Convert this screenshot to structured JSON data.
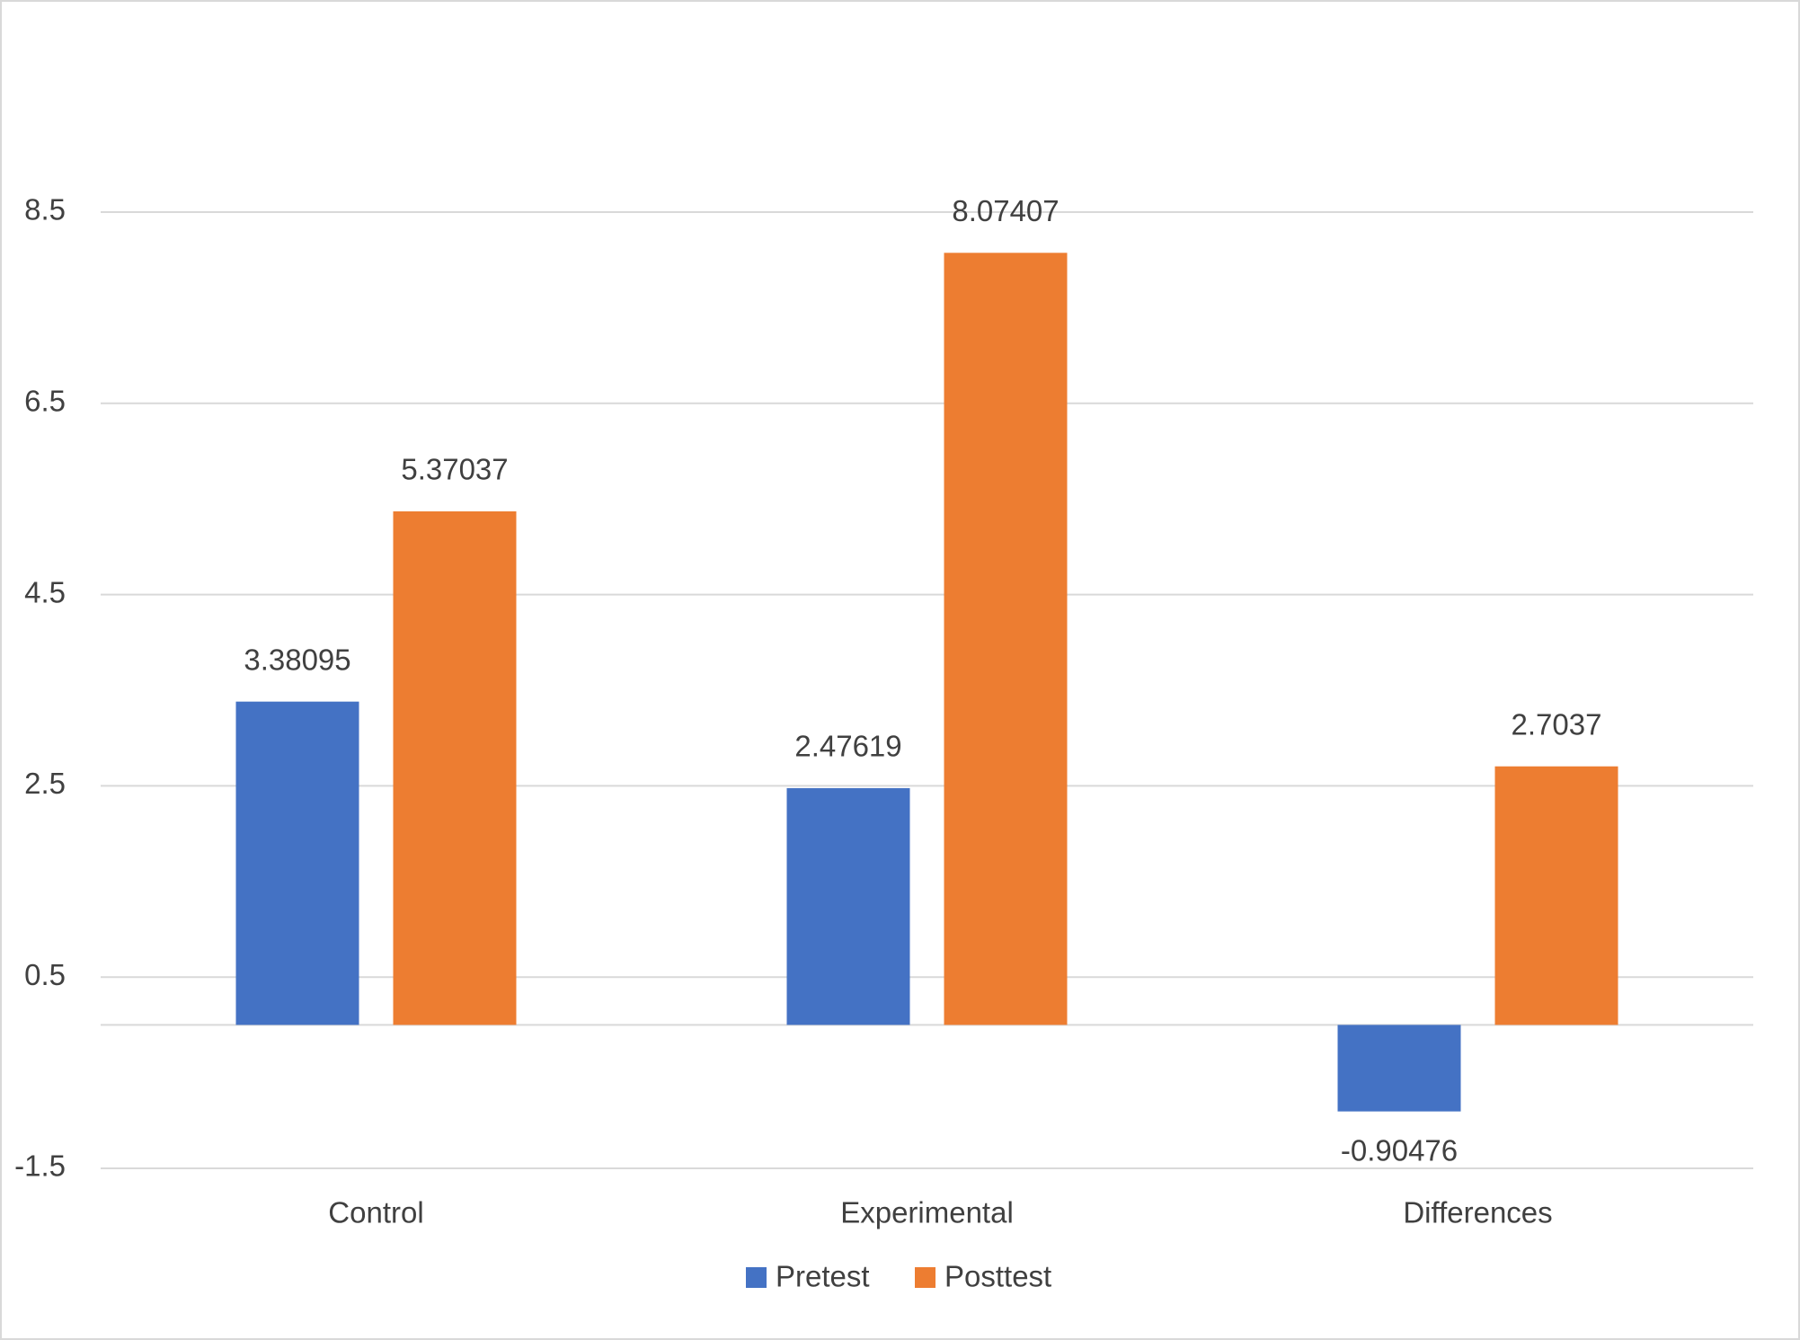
{
  "chart_data": {
    "type": "bar",
    "categories": [
      "Control",
      "Experimental",
      "Differences"
    ],
    "series": [
      {
        "name": "Pretest",
        "color": "#4472c4",
        "values": [
          3.38095,
          2.47619,
          -0.90476
        ]
      },
      {
        "name": "Posttest",
        "color": "#ed7d31",
        "values": [
          5.37037,
          8.07407,
          2.7037
        ]
      }
    ],
    "ylim": [
      -1.5,
      8.5
    ],
    "yticks": [
      -1.5,
      0.5,
      2.5,
      4.5,
      6.5,
      8.5
    ],
    "grid": true,
    "legend": "bottom"
  }
}
